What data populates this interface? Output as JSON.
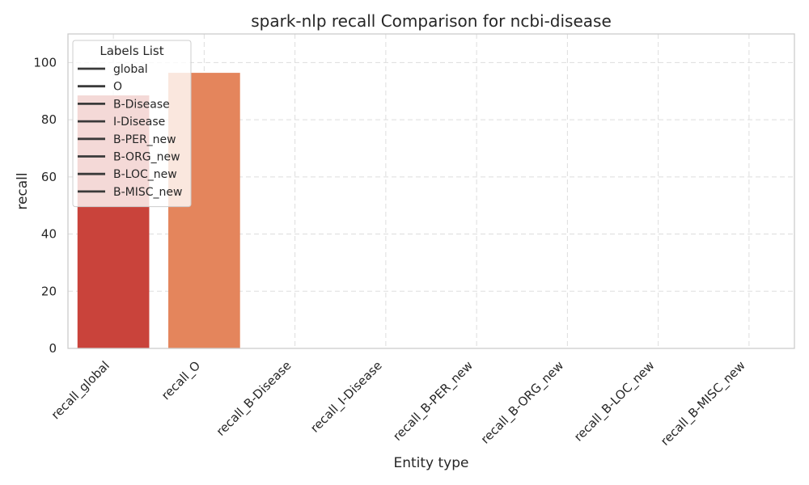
{
  "chart_data": {
    "type": "bar",
    "title": "spark-nlp recall Comparison for ncbi-disease",
    "xlabel": "Entity type",
    "ylabel": "recall",
    "categories": [
      "recall_global",
      "recall_O",
      "recall_B-Disease",
      "recall_I-Disease",
      "recall_B-PER_new",
      "recall_B-ORG_new",
      "recall_B-LOC_new",
      "recall_B-MISC_new"
    ],
    "values": [
      88.5,
      96.4,
      0,
      0,
      0,
      0,
      0,
      0
    ],
    "bar_colors": [
      "#c9433b",
      "#e4855c",
      "#e4855c",
      "#e4855c",
      "#e4855c",
      "#e4855c",
      "#e4855c",
      "#e4855c"
    ],
    "ylim": [
      0,
      110
    ],
    "yticks": [
      0,
      20,
      40,
      60,
      80,
      100
    ],
    "grid": true,
    "legend": {
      "title": "Labels List",
      "placement": "top-left",
      "entries": [
        "global",
        "O",
        "B-Disease",
        "I-Disease",
        "B-PER_new",
        "B-ORG_new",
        "B-LOC_new",
        "B-MISC_new"
      ],
      "line_color": "#3a3a3a"
    }
  }
}
